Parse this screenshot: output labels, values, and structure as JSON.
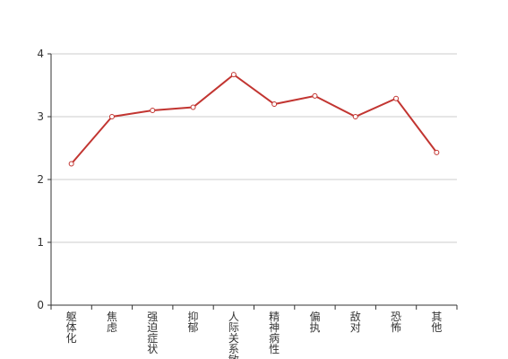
{
  "chart_data": {
    "type": "line",
    "categories": [
      "躯体化",
      "焦虑",
      "强迫症状",
      "抑郁",
      "人际关系敏感",
      "精神病性",
      "偏执",
      "敌对",
      "恐怖",
      "其他"
    ],
    "values": [
      2.25,
      3.0,
      3.1,
      3.15,
      3.67,
      3.2,
      3.33,
      3.0,
      3.29,
      2.43
    ],
    "color": "#c23531",
    "ylim": [
      0,
      4
    ],
    "yticks": [
      0,
      1,
      2,
      3,
      4
    ],
    "grid": true
  }
}
